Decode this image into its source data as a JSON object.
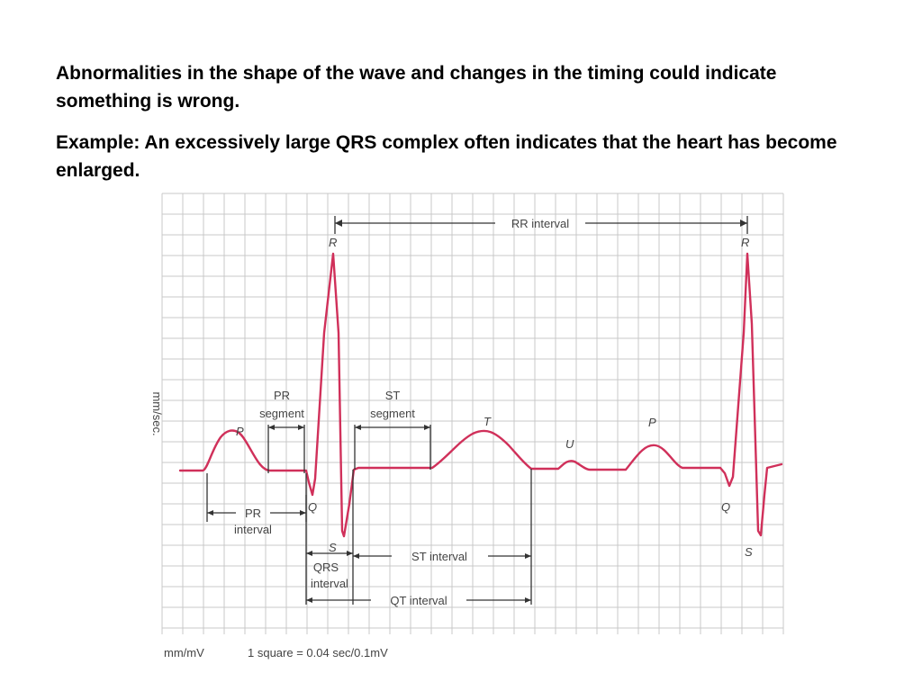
{
  "slide": {
    "paragraph1": "Abnormalities in the shape of the wave and changes in the timing could indicate something is wrong.",
    "paragraph2": "Example: An excessively large QRS complex often indicates that the heart has become enlarged."
  },
  "diagram": {
    "colors": {
      "trace": "#d0305a",
      "grid": "#c8c8c8",
      "grid_bg": "#ffffff",
      "annotation": "#333333"
    },
    "y_axis_label": "mm/sec.",
    "wave_labels": {
      "p1": "P",
      "q1": "Q",
      "r1": "R",
      "s1": "S",
      "t": "T",
      "u": "U",
      "p2": "P",
      "q2": "Q",
      "r2": "R",
      "s2": "S"
    },
    "intervals": {
      "rr": "RR interval",
      "pr_segment_line1": "PR",
      "pr_segment_line2": "segment",
      "st_segment_line1": "ST",
      "st_segment_line2": "segment",
      "pr_interval_line1": "PR",
      "pr_interval_line2": "interval",
      "qrs_interval_line1": "QRS",
      "qrs_interval_line2": "interval",
      "st_interval": "ST interval",
      "qt_interval": "QT interval"
    },
    "footer": {
      "units": "mm/mV",
      "scale": "1 square = 0.04 sec/0.1mV"
    }
  }
}
